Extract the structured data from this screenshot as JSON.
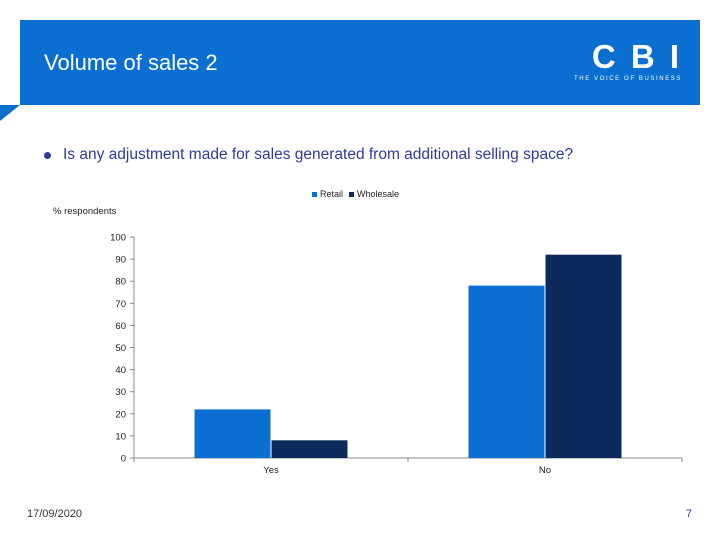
{
  "header": {
    "title": "Volume of sales 2"
  },
  "logo": {
    "mark": "C B I",
    "tagline": "THE VOICE OF BUSINESS"
  },
  "question": "Is any adjustment made for sales generated from additional selling space?",
  "footer": {
    "date": "17/09/2020",
    "page": "7"
  },
  "colors": {
    "header": "#0a6fd1",
    "retail": "#0a6fd1",
    "wholesale": "#0c2a5b"
  },
  "chart_data": {
    "type": "bar",
    "categories": [
      "Yes",
      "No"
    ],
    "series": [
      {
        "name": "Retail",
        "values": [
          22,
          78
        ],
        "color": "#0a6fd1"
      },
      {
        "name": "Wholesale",
        "values": [
          8,
          92
        ],
        "color": "#0c2a5b"
      }
    ],
    "ylabel": "% respondents",
    "ylim": [
      0,
      100
    ],
    "yticks": [
      0,
      10,
      20,
      30,
      40,
      50,
      60,
      70,
      80,
      90,
      100
    ],
    "legend": "top-center",
    "grid": false
  }
}
